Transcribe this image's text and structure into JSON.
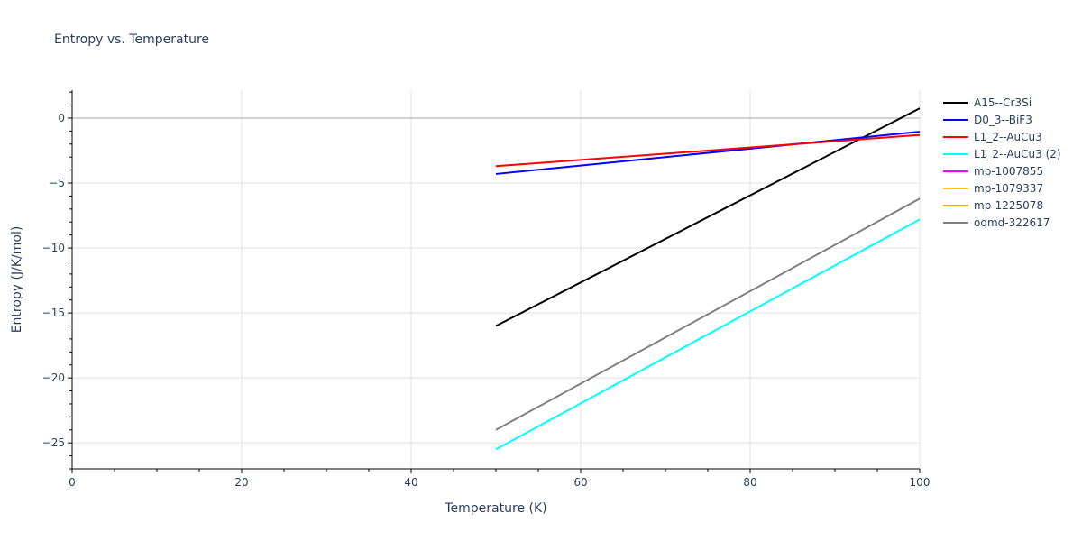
{
  "chart_data": {
    "type": "line",
    "title": "Entropy vs. Temperature",
    "xlabel": "Temperature (K)",
    "ylabel": "Entropy (J/K/mol)",
    "xlim": [
      0,
      100
    ],
    "ylim": [
      -27,
      2.15
    ],
    "x_ticks": [
      0,
      20,
      40,
      60,
      80,
      100
    ],
    "y_ticks": [
      0,
      -5,
      -10,
      -15,
      -20,
      -25
    ],
    "grid": true,
    "legend_position": "right",
    "series": [
      {
        "name": "A15--Cr3Si",
        "color": "#000000",
        "x": [
          50,
          100
        ],
        "values": [
          -16.0,
          0.75
        ]
      },
      {
        "name": "D0_3--BiF3",
        "color": "#0000ff",
        "x": [
          50,
          100
        ],
        "values": [
          -4.3,
          -1.05
        ]
      },
      {
        "name": "L1_2--AuCu3",
        "color": "#ff0000",
        "x": [
          50,
          100
        ],
        "values": [
          -3.7,
          -1.3
        ]
      },
      {
        "name": "L1_2--AuCu3 (2)",
        "color": "#00ffff",
        "x": [
          50,
          100
        ],
        "values": [
          -25.5,
          -7.8
        ]
      },
      {
        "name": "mp-1007855",
        "color": "#ff00ff",
        "x": [],
        "values": []
      },
      {
        "name": "mp-1079337",
        "color": "#ffc000",
        "x": [],
        "values": []
      },
      {
        "name": "mp-1225078",
        "color": "#ffa500",
        "x": [],
        "values": []
      },
      {
        "name": "oqmd-322617",
        "color": "#808080",
        "x": [
          50,
          100
        ],
        "values": [
          -24.0,
          -6.2
        ]
      }
    ]
  }
}
